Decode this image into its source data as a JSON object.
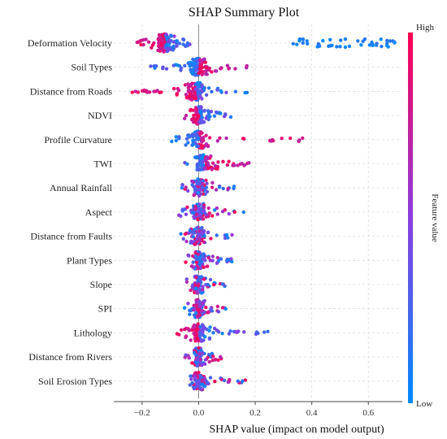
{
  "chart_data": {
    "type": "scatter",
    "subtype": "shap-beeswarm",
    "title": "SHAP Summary Plot",
    "xlabel": "SHAP value (impact on model output)",
    "xlim": [
      -0.3,
      0.72
    ],
    "xticks": [
      -0.2,
      0.0,
      0.2,
      0.4,
      0.6
    ],
    "xtick_labels": [
      "−0.2",
      "0.0",
      "0.2",
      "0.4",
      "0.6"
    ],
    "grid": true,
    "colorbar": {
      "label": "Feature value",
      "high_label": "High",
      "low_label": "Low",
      "high_color": "#ff0052",
      "mid_color": "#8b3ee0",
      "low_color": "#008bfb"
    },
    "features": [
      {
        "name": "Deformation Velocity",
        "spread": [
          -0.22,
          -0.03
        ],
        "core": -0.12,
        "high_side": "negative",
        "extra_low": [
          0.33,
          0.7
        ]
      },
      {
        "name": "Soil Types",
        "spread": [
          -0.17,
          0.18
        ],
        "core": 0.0,
        "high_side": "positive"
      },
      {
        "name": "Distance from Roads",
        "spread": [
          -0.25,
          0.18
        ],
        "core": -0.01,
        "high_side": "negative"
      },
      {
        "name": "NDVI",
        "spread": [
          -0.06,
          0.12
        ],
        "core": 0.0,
        "high_side": "negative"
      },
      {
        "name": "Profile Curvature",
        "spread": [
          -0.1,
          0.37
        ],
        "core": 0.0,
        "high_side": "positive"
      },
      {
        "name": "TWI",
        "spread": [
          -0.05,
          0.2
        ],
        "core": 0.02,
        "high_side": "positive"
      },
      {
        "name": "Annual Rainfall",
        "spread": [
          -0.06,
          0.13
        ],
        "core": 0.0,
        "high_side": "mixed"
      },
      {
        "name": "Aspect",
        "spread": [
          -0.08,
          0.17
        ],
        "core": 0.0,
        "high_side": "mixed"
      },
      {
        "name": "Distance from Faults",
        "spread": [
          -0.07,
          0.12
        ],
        "core": 0.0,
        "high_side": "mixed"
      },
      {
        "name": "Plant Types",
        "spread": [
          -0.05,
          0.12
        ],
        "core": 0.0,
        "high_side": "mixed"
      },
      {
        "name": "Slope",
        "spread": [
          -0.06,
          0.1
        ],
        "core": 0.0,
        "high_side": "mixed"
      },
      {
        "name": "SPI",
        "spread": [
          -0.06,
          0.1
        ],
        "core": 0.0,
        "high_side": "mixed"
      },
      {
        "name": "Lithology",
        "spread": [
          -0.1,
          0.25
        ],
        "core": 0.0,
        "high_side": "negative"
      },
      {
        "name": "Distance from Rivers",
        "spread": [
          -0.05,
          0.1
        ],
        "core": 0.0,
        "high_side": "mixed"
      },
      {
        "name": "Soil Erosion Types",
        "spread": [
          -0.05,
          0.18
        ],
        "core": 0.0,
        "high_side": "mixed"
      }
    ]
  }
}
